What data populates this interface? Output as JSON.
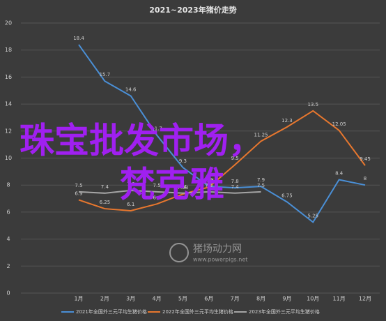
{
  "chart_data": {
    "type": "line",
    "title": "2021~2023年猪价走势",
    "categories": [
      "1月",
      "2月",
      "3月",
      "4月",
      "5月",
      "6月",
      "7月",
      "8月",
      "9月",
      "10月",
      "11月",
      "12月"
    ],
    "ylim": [
      0,
      20
    ],
    "yticks": [
      0,
      2,
      4,
      6,
      8,
      10,
      12,
      14,
      16,
      18,
      20
    ],
    "grid": true,
    "legend": "bottom",
    "series": [
      {
        "name": "2021年全国外三元平均生猪价格",
        "color": "#4a8fd6",
        "values": [
          18.4,
          15.7,
          14.6,
          11.7,
          9.3,
          7.9,
          7.8,
          7.9,
          6.75,
          5.25,
          8.4,
          8
        ]
      },
      {
        "name": "2022年全国外三元平均生猪价格",
        "color": "#e8772e",
        "values": [
          6.9,
          6.25,
          6.1,
          6.6,
          7.33,
          7.85,
          9.5,
          11.25,
          12.3,
          13.5,
          12.05,
          9.45
        ]
      },
      {
        "name": "2023年全国外三元平均生猪价格",
        "color": "#a5a5a5",
        "values": [
          7.5,
          7.4,
          7.6,
          7.5,
          7.4,
          7.5,
          7.4,
          7.5,
          null,
          null,
          null,
          null
        ]
      }
    ],
    "annotations": [
      "珠宝批发市场，",
      "梵克雅",
      "猪场动力网",
      "www.powerpigs.net"
    ]
  }
}
